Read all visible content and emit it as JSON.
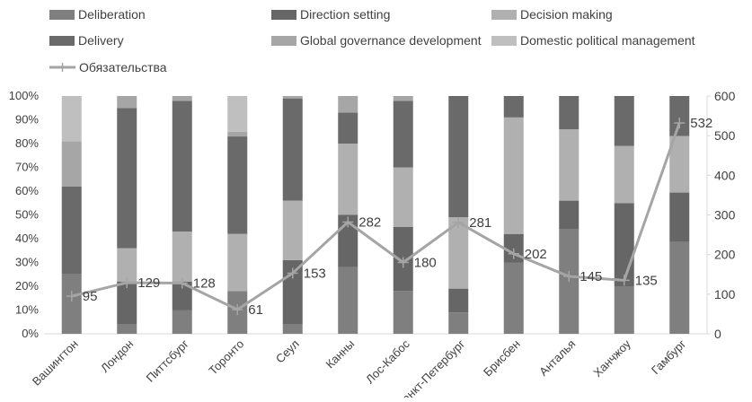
{
  "chart_data": {
    "type": "bar",
    "stacked": true,
    "percent_stacked": true,
    "categories": [
      "Вашингтон",
      "Лондон",
      "Питтсбург",
      "Торонто",
      "Сеул",
      "Канны",
      "Лос-Кабос",
      "Санкт-Петербург",
      "Брисбен",
      "Анталья",
      "Ханчжоу",
      "Гамбург"
    ],
    "series": [
      {
        "name": "Deliberation",
        "color": "#7f7f7f",
        "values": [
          25,
          4,
          10,
          18,
          4,
          28,
          18,
          9,
          30,
          44,
          20,
          39
        ]
      },
      {
        "name": "Direction setting",
        "color": "#666666",
        "values": [
          0,
          18,
          12,
          0,
          27,
          22,
          27,
          10,
          12,
          12,
          35,
          21
        ]
      },
      {
        "name": "Decision making",
        "color": "#b0b0b0",
        "values": [
          0,
          14,
          21,
          24,
          25,
          30,
          25,
          30,
          49,
          30,
          24,
          24
        ]
      },
      {
        "name": "Delivery",
        "color": "#6a6a6a",
        "values": [
          37,
          59,
          55,
          41,
          43,
          13,
          28,
          51,
          9,
          14,
          21,
          17
        ]
      },
      {
        "name": "Global governance development",
        "color": "#a6a6a6",
        "values": [
          19,
          5,
          2,
          2,
          1,
          7,
          2,
          0,
          0,
          0,
          0,
          0
        ]
      },
      {
        "name": "Domestic political management",
        "color": "#bfbfbf",
        "values": [
          19,
          0,
          0,
          15,
          0,
          0,
          0,
          0,
          0,
          0,
          0,
          0
        ]
      }
    ],
    "line_series": {
      "name": "Обязательства",
      "color": "#a5a5a5",
      "values": [
        95,
        129,
        128,
        61,
        153,
        282,
        180,
        281,
        202,
        145,
        135,
        532
      ],
      "labels": [
        "95",
        "129",
        "128",
        "61",
        "153",
        "282",
        "180",
        "281",
        "202",
        "145",
        "135",
        "532"
      ]
    },
    "y_left": {
      "min": 0,
      "max": 100,
      "ticks": [
        "0%",
        "10%",
        "20%",
        "30%",
        "40%",
        "50%",
        "60%",
        "70%",
        "80%",
        "90%",
        "100%"
      ]
    },
    "y_right": {
      "min": 0,
      "max": 600,
      "ticks": [
        "0",
        "100",
        "200",
        "300",
        "400",
        "500",
        "600"
      ]
    },
    "legend_position": "top",
    "grid": false
  }
}
